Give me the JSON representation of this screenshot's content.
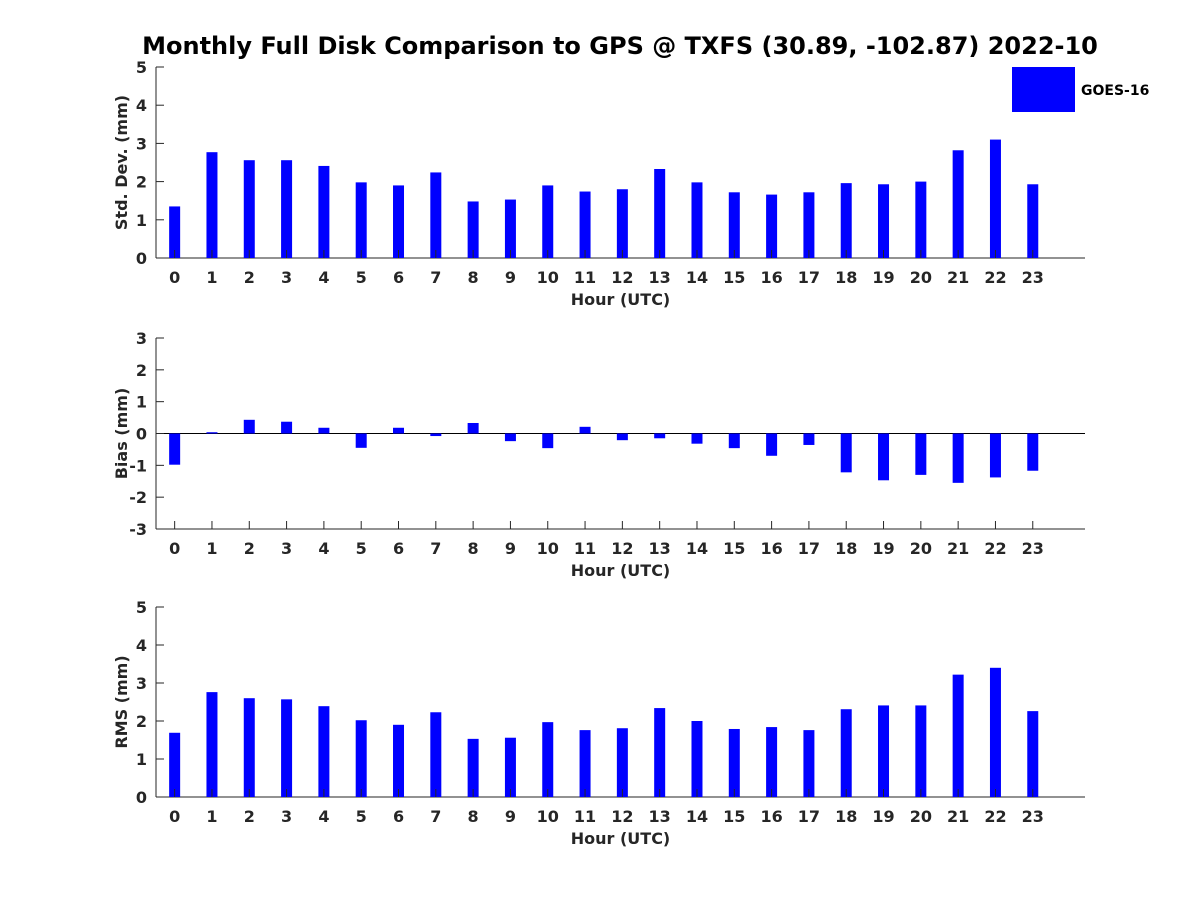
{
  "title": "Monthly Full Disk Comparison to GPS @ TXFS (30.89, -102.87) 2022-10",
  "legend": {
    "label": "GOES-16",
    "color": "#0000ff",
    "placement": "top-right"
  },
  "bar_color": "#0000ff",
  "chart_data": [
    {
      "type": "bar",
      "xlabel": "Hour (UTC)",
      "ylabel": "Std. Dev. (mm)",
      "ylim": [
        0,
        5
      ],
      "yticks": [
        0,
        1,
        2,
        3,
        4,
        5
      ],
      "categories": [
        "0",
        "1",
        "2",
        "3",
        "4",
        "5",
        "6",
        "7",
        "8",
        "9",
        "10",
        "11",
        "12",
        "13",
        "14",
        "15",
        "16",
        "17",
        "18",
        "19",
        "20",
        "21",
        "22",
        "23"
      ],
      "series": [
        {
          "name": "GOES-16",
          "values": [
            1.35,
            2.77,
            2.56,
            2.56,
            2.41,
            1.98,
            1.9,
            2.24,
            1.48,
            1.53,
            1.9,
            1.74,
            1.8,
            2.33,
            1.98,
            1.72,
            1.66,
            1.72,
            1.96,
            1.93,
            2.0,
            2.82,
            3.1,
            1.93
          ]
        }
      ]
    },
    {
      "type": "bar",
      "xlabel": "Hour (UTC)",
      "ylabel": "Bias (mm)",
      "ylim": [
        -3,
        3
      ],
      "yticks": [
        -3,
        -2,
        -1,
        0,
        1,
        2,
        3
      ],
      "categories": [
        "0",
        "1",
        "2",
        "3",
        "4",
        "5",
        "6",
        "7",
        "8",
        "9",
        "10",
        "11",
        "12",
        "13",
        "14",
        "15",
        "16",
        "17",
        "18",
        "19",
        "20",
        "21",
        "22",
        "23"
      ],
      "series": [
        {
          "name": "GOES-16",
          "values": [
            -0.98,
            0.04,
            0.43,
            0.37,
            0.18,
            -0.45,
            0.18,
            -0.08,
            0.33,
            -0.24,
            -0.46,
            0.21,
            -0.21,
            -0.15,
            -0.32,
            -0.46,
            -0.7,
            -0.36,
            -1.22,
            -1.47,
            -1.3,
            -1.55,
            -1.38,
            -1.17
          ]
        }
      ]
    },
    {
      "type": "bar",
      "xlabel": "Hour (UTC)",
      "ylabel": "RMS (mm)",
      "ylim": [
        0,
        5
      ],
      "yticks": [
        0,
        1,
        2,
        3,
        4,
        5
      ],
      "categories": [
        "0",
        "1",
        "2",
        "3",
        "4",
        "5",
        "6",
        "7",
        "8",
        "9",
        "10",
        "11",
        "12",
        "13",
        "14",
        "15",
        "16",
        "17",
        "18",
        "19",
        "20",
        "21",
        "22",
        "23"
      ],
      "series": [
        {
          "name": "GOES-16",
          "values": [
            1.69,
            2.76,
            2.6,
            2.57,
            2.39,
            2.02,
            1.9,
            2.23,
            1.53,
            1.56,
            1.97,
            1.76,
            1.81,
            2.34,
            2.0,
            1.79,
            1.84,
            1.76,
            2.31,
            2.41,
            2.41,
            3.22,
            3.4,
            2.26
          ]
        }
      ]
    }
  ]
}
